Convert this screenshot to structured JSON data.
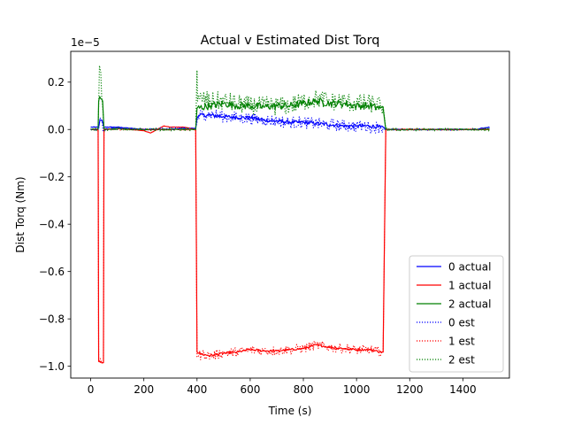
{
  "chart_data": {
    "type": "line",
    "title": "Actual v Estimated Dist Torq",
    "xlabel": "Time (s)",
    "ylabel": "Dist Torq (Nm)",
    "y_offset_text": "1e−5",
    "y_multiplier": 1e-05,
    "xlim": [
      -75,
      1575
    ],
    "ylim": [
      -1.05,
      0.33
    ],
    "x_ticks": [
      0,
      200,
      400,
      600,
      800,
      1000,
      1200,
      1400
    ],
    "y_ticks": [
      0.2,
      0.0,
      -0.2,
      -0.4,
      -0.6,
      -0.8,
      -1.0
    ],
    "grid": false,
    "legend_position": "lower right",
    "series": [
      {
        "name": "0 actual",
        "color": "#0000ff",
        "style": "solid",
        "x": [
          0,
          30,
          35,
          40,
          50,
          100,
          150,
          200,
          250,
          300,
          350,
          395,
          400,
          410,
          450,
          500,
          550,
          600,
          650,
          700,
          750,
          800,
          850,
          900,
          950,
          1000,
          1050,
          1090,
          1100,
          1110,
          1200,
          1300,
          1400,
          1450,
          1500
        ],
        "y": [
          0.01,
          0.01,
          0.04,
          0.04,
          0.01,
          0.01,
          0.005,
          0.0,
          0.0,
          0.0,
          0.005,
          0.005,
          0.05,
          0.06,
          0.06,
          0.055,
          0.05,
          0.05,
          0.04,
          0.035,
          0.03,
          0.03,
          0.025,
          0.02,
          0.015,
          0.015,
          0.015,
          0.01,
          0.01,
          0.0,
          0.0,
          0.0,
          0.0,
          0.0,
          0.01
        ],
        "jitter": 0.008
      },
      {
        "name": "1 actual",
        "color": "#ff0000",
        "style": "solid",
        "x": [
          0,
          20,
          28,
          30,
          45,
          48,
          50,
          100,
          150,
          200,
          225,
          250,
          275,
          300,
          350,
          395,
          400,
          420,
          450,
          500,
          550,
          600,
          650,
          700,
          750,
          800,
          850,
          900,
          950,
          1000,
          1050,
          1095,
          1100,
          1110,
          1200,
          1300,
          1400,
          1500
        ],
        "y": [
          0.0,
          0.0,
          0.0,
          -0.98,
          -0.985,
          -0.985,
          0.0,
          0.005,
          0.0,
          -0.005,
          -0.015,
          0.0,
          0.015,
          0.01,
          0.01,
          0.0,
          -0.94,
          -0.95,
          -0.955,
          -0.945,
          -0.94,
          -0.93,
          -0.935,
          -0.935,
          -0.93,
          -0.925,
          -0.91,
          -0.92,
          -0.925,
          -0.93,
          -0.93,
          -0.94,
          -0.94,
          0.0,
          0.0,
          0.0,
          0.0,
          0.0
        ],
        "jitter": 0.004
      },
      {
        "name": "2 actual",
        "color": "#008000",
        "style": "solid",
        "x": [
          0,
          28,
          30,
          38,
          45,
          50,
          100,
          150,
          200,
          250,
          300,
          350,
          395,
          400,
          450,
          500,
          550,
          600,
          650,
          700,
          750,
          800,
          850,
          900,
          950,
          1000,
          1050,
          1090,
          1100,
          1110,
          1200,
          1300,
          1400,
          1500
        ],
        "y": [
          0.0,
          0.0,
          0.12,
          0.13,
          0.12,
          0.0,
          0.005,
          0.0,
          0.0,
          0.0,
          0.0,
          0.0,
          0.0,
          0.09,
          0.1,
          0.11,
          0.1,
          0.1,
          0.095,
          0.1,
          0.1,
          0.11,
          0.12,
          0.11,
          0.11,
          0.1,
          0.1,
          0.09,
          0.09,
          0.0,
          0.0,
          0.0,
          0.0,
          0.0
        ],
        "jitter": 0.015
      },
      {
        "name": "0 est",
        "color": "#0000ff",
        "style": "dotted",
        "x": [
          0,
          30,
          35,
          40,
          50,
          100,
          200,
          300,
          395,
          400,
          410,
          450,
          500,
          550,
          600,
          650,
          700,
          750,
          800,
          850,
          900,
          950,
          1000,
          1050,
          1090,
          1100,
          1110,
          1200,
          1300,
          1400,
          1500
        ],
        "y": [
          0.0,
          0.0,
          0.05,
          0.04,
          0.0,
          0.005,
          0.0,
          0.005,
          0.005,
          0.03,
          0.06,
          0.065,
          0.055,
          0.05,
          0.045,
          0.04,
          0.035,
          0.03,
          0.03,
          0.025,
          0.02,
          0.015,
          0.015,
          0.01,
          0.01,
          0.01,
          0.0,
          0.0,
          0.0,
          0.0,
          0.005
        ],
        "jitter": 0.025
      },
      {
        "name": "1 est",
        "color": "#ff0000",
        "style": "dotted",
        "x": [
          0,
          28,
          30,
          45,
          48,
          50,
          100,
          200,
          300,
          395,
          400,
          420,
          450,
          500,
          550,
          600,
          650,
          700,
          750,
          800,
          850,
          900,
          950,
          1000,
          1050,
          1095,
          1100,
          1110,
          1200,
          1300,
          1400,
          1500
        ],
        "y": [
          0.0,
          0.0,
          -0.98,
          -0.985,
          -0.985,
          0.0,
          0.0,
          0.0,
          0.0,
          0.0,
          -0.96,
          -0.95,
          -0.955,
          -0.945,
          -0.94,
          -0.93,
          -0.935,
          -0.935,
          -0.93,
          -0.925,
          -0.91,
          -0.92,
          -0.925,
          -0.93,
          -0.93,
          -0.94,
          -0.94,
          0.0,
          0.0,
          0.0,
          0.0,
          0.0
        ],
        "jitter": 0.02
      },
      {
        "name": "2 est",
        "color": "#008000",
        "style": "dotted",
        "x": [
          0,
          28,
          30,
          33,
          38,
          45,
          50,
          100,
          200,
          300,
          395,
          400,
          402,
          410,
          450,
          500,
          550,
          600,
          650,
          700,
          750,
          800,
          850,
          900,
          950,
          1000,
          1050,
          1090,
          1100,
          1110,
          1200,
          1300,
          1400,
          1500
        ],
        "y": [
          0.0,
          0.0,
          0.1,
          0.27,
          0.24,
          0.1,
          0.0,
          0.0,
          0.0,
          0.0,
          0.0,
          0.25,
          0.12,
          0.13,
          0.12,
          0.12,
          0.11,
          0.1,
          0.1,
          0.1,
          0.1,
          0.12,
          0.13,
          0.12,
          0.12,
          0.11,
          0.11,
          0.1,
          0.1,
          0.0,
          0.0,
          0.0,
          0.0,
          0.0
        ],
        "jitter": 0.04
      }
    ]
  }
}
